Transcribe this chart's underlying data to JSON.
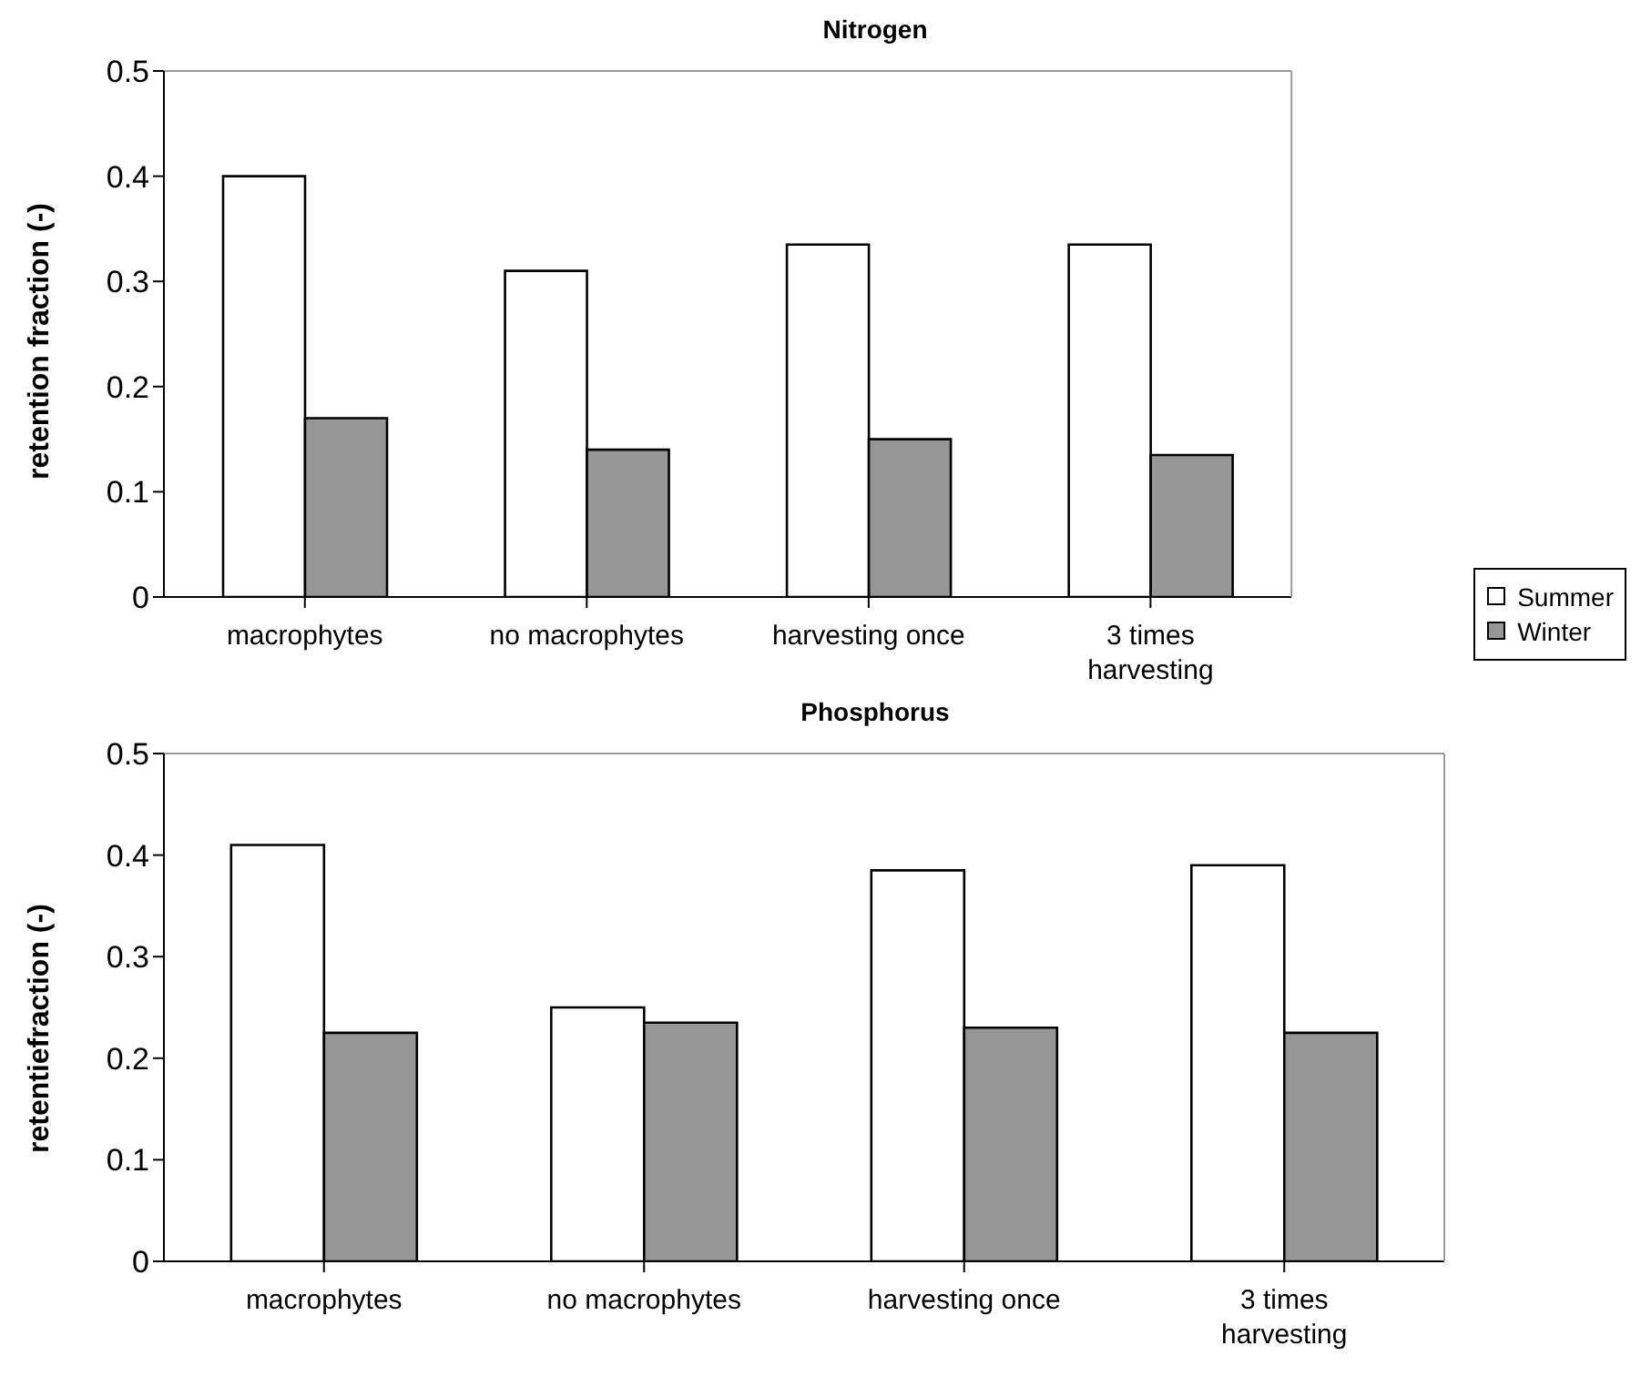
{
  "chart_data": [
    {
      "type": "bar",
      "title": "Nitrogen",
      "ylabel": "retention fraction (-)",
      "categories": [
        "macrophytes",
        "no macrophytes",
        "harvesting once",
        "3 times harvesting"
      ],
      "series": [
        {
          "name": "Summer",
          "color": "#ffffff",
          "values": [
            0.4,
            0.31,
            0.335,
            0.335
          ]
        },
        {
          "name": "Winter",
          "color": "#969696",
          "values": [
            0.17,
            0.14,
            0.15,
            0.135
          ]
        }
      ],
      "ylim": [
        0,
        0.5
      ],
      "yticks": [
        0,
        0.1,
        0.2,
        0.3,
        0.4,
        0.5
      ],
      "legend": "right"
    },
    {
      "type": "bar",
      "title": "Phosphorus",
      "ylabel": "retentiefraction (-)",
      "categories": [
        "macrophytes",
        "no macrophytes",
        "harvesting once",
        "3 times harvesting"
      ],
      "series": [
        {
          "color": "#ffffff",
          "values": [
            0.41,
            0.25,
            0.385,
            0.39
          ]
        },
        {
          "color": "#969696",
          "values": [
            0.225,
            0.235,
            0.23,
            0.225
          ]
        }
      ],
      "ylim": [
        0,
        0.5
      ],
      "yticks": [
        0,
        0.1,
        0.2,
        0.3,
        0.4,
        0.5
      ]
    }
  ]
}
